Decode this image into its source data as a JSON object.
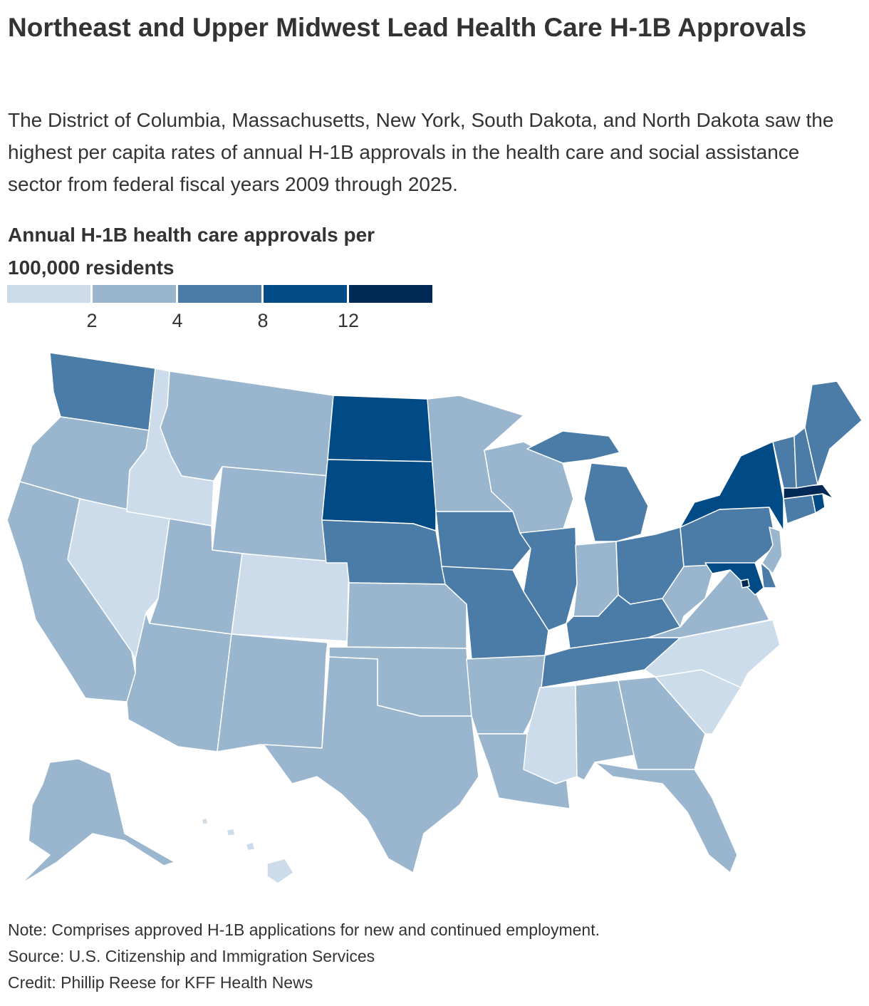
{
  "title": "Northeast and Upper Midwest Lead Health Care H-1B Approvals",
  "subtitle": "The District of Columbia, Massachusetts, New York, South Dakota, and North Dakota saw the highest per capita rates of annual H-1B approvals in the health care and social assistance sector from federal fiscal years 2009 through 2025.",
  "legend": {
    "title": "Annual H-1B health care approvals per 100,000 residents",
    "bins": [
      {
        "label": "<2",
        "color": "#cddcea"
      },
      {
        "label": "2-4",
        "color": "#9ab6cf"
      },
      {
        "label": "4-8",
        "color": "#4b7ca8"
      },
      {
        "label": "8-12",
        "color": "#004a86"
      },
      {
        "label": "12+",
        "color": "#002a55"
      }
    ],
    "ticks": [
      "2",
      "4",
      "8",
      "12"
    ]
  },
  "map_data": {
    "type": "choropleth",
    "region": "United States",
    "states": [
      {
        "name": "Washington",
        "bin": 2
      },
      {
        "name": "Oregon",
        "bin": 1
      },
      {
        "name": "California",
        "bin": 1
      },
      {
        "name": "Nevada",
        "bin": 0
      },
      {
        "name": "Idaho",
        "bin": 0
      },
      {
        "name": "Montana",
        "bin": 1
      },
      {
        "name": "Wyoming",
        "bin": 1
      },
      {
        "name": "Utah",
        "bin": 1
      },
      {
        "name": "Colorado",
        "bin": 0
      },
      {
        "name": "Arizona",
        "bin": 1
      },
      {
        "name": "New Mexico",
        "bin": 1
      },
      {
        "name": "North Dakota",
        "bin": 3
      },
      {
        "name": "South Dakota",
        "bin": 3
      },
      {
        "name": "Nebraska",
        "bin": 2
      },
      {
        "name": "Kansas",
        "bin": 1
      },
      {
        "name": "Oklahoma",
        "bin": 1
      },
      {
        "name": "Texas",
        "bin": 1
      },
      {
        "name": "Minnesota",
        "bin": 1
      },
      {
        "name": "Iowa",
        "bin": 2
      },
      {
        "name": "Missouri",
        "bin": 2
      },
      {
        "name": "Arkansas",
        "bin": 1
      },
      {
        "name": "Louisiana",
        "bin": 1
      },
      {
        "name": "Wisconsin",
        "bin": 1
      },
      {
        "name": "Illinois",
        "bin": 2
      },
      {
        "name": "Michigan",
        "bin": 2
      },
      {
        "name": "Indiana",
        "bin": 1
      },
      {
        "name": "Ohio",
        "bin": 2
      },
      {
        "name": "Kentucky",
        "bin": 2
      },
      {
        "name": "Tennessee",
        "bin": 2
      },
      {
        "name": "Mississippi",
        "bin": 0
      },
      {
        "name": "Alabama",
        "bin": 1
      },
      {
        "name": "Georgia",
        "bin": 1
      },
      {
        "name": "Florida",
        "bin": 1
      },
      {
        "name": "South Carolina",
        "bin": 0
      },
      {
        "name": "North Carolina",
        "bin": 0
      },
      {
        "name": "Virginia",
        "bin": 1
      },
      {
        "name": "West Virginia",
        "bin": 1
      },
      {
        "name": "Pennsylvania",
        "bin": 2
      },
      {
        "name": "New York",
        "bin": 3
      },
      {
        "name": "New Jersey",
        "bin": 1
      },
      {
        "name": "Delaware",
        "bin": 2
      },
      {
        "name": "Maryland",
        "bin": 3
      },
      {
        "name": "District of Columbia",
        "bin": 4
      },
      {
        "name": "Connecticut",
        "bin": 2
      },
      {
        "name": "Rhode Island",
        "bin": 3
      },
      {
        "name": "Massachusetts",
        "bin": 4
      },
      {
        "name": "Vermont",
        "bin": 2
      },
      {
        "name": "New Hampshire",
        "bin": 2
      },
      {
        "name": "Maine",
        "bin": 2
      },
      {
        "name": "Alaska",
        "bin": 1
      },
      {
        "name": "Hawaii",
        "bin": 0
      }
    ]
  },
  "notes": {
    "note": "Note: Comprises approved H-1B applications for new and continued employment.",
    "source": "Source: U.S. Citizenship and Immigration Services",
    "credit": "Credit: Phillip Reese for KFF Health News"
  }
}
